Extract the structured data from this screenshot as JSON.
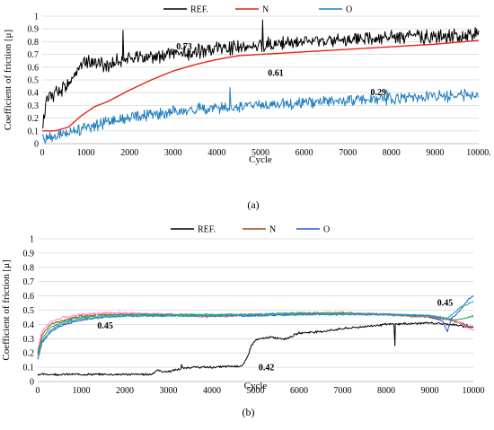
{
  "chart_data": [
    {
      "id": "a",
      "type": "line",
      "panel_label": "(a)",
      "panel_letter": "a",
      "xlabel": "Cycle",
      "ylabel": "Coefficient of friction [μ]",
      "xlim": [
        0,
        10000
      ],
      "ylim": [
        0,
        1
      ],
      "x_ticks": [
        "0",
        "1000",
        "2000",
        "3000",
        "4000",
        "5000",
        "6000",
        "7000",
        "8000",
        "9000",
        "10000."
      ],
      "y_ticks": [
        "0",
        "0.1",
        "0.2",
        "0.3",
        "0.4",
        "0.5",
        "0.6",
        "0.7",
        "0.8",
        "0.9",
        "1"
      ],
      "grid": true,
      "legend_position": "top",
      "series": [
        {
          "name": "REF.",
          "color": "#000000",
          "noise": 0.045,
          "seed": 11,
          "x": [
            0,
            100,
            300,
            600,
            800,
            1000,
            1500,
            2000,
            3000,
            4000,
            5000,
            6000,
            7000,
            8000,
            9000,
            10000
          ],
          "y": [
            0.12,
            0.33,
            0.4,
            0.47,
            0.58,
            0.65,
            0.62,
            0.67,
            0.7,
            0.74,
            0.77,
            0.79,
            0.81,
            0.83,
            0.84,
            0.86
          ],
          "spikes": [
            [
              1850,
              0.89
            ],
            [
              5050,
              0.97
            ]
          ]
        },
        {
          "name": "N",
          "color": "#e8211a",
          "noise": 0,
          "seed": 0,
          "x": [
            0,
            300,
            600,
            900,
            1200,
            1500,
            2000,
            2500,
            3000,
            3500,
            4000,
            4500,
            5000,
            6000,
            7000,
            8000,
            9000,
            10000
          ],
          "y": [
            0.1,
            0.1,
            0.13,
            0.22,
            0.29,
            0.33,
            0.42,
            0.5,
            0.57,
            0.62,
            0.66,
            0.69,
            0.7,
            0.72,
            0.74,
            0.76,
            0.78,
            0.81
          ]
        },
        {
          "name": "O",
          "color": "#1f7fc1",
          "noise": 0.035,
          "seed": 23,
          "x": [
            0,
            300,
            700,
            1000,
            1500,
            2000,
            3000,
            4000,
            5000,
            6000,
            7000,
            8000,
            9000,
            10000
          ],
          "y": [
            0.04,
            0.06,
            0.09,
            0.13,
            0.17,
            0.2,
            0.25,
            0.28,
            0.3,
            0.32,
            0.34,
            0.35,
            0.37,
            0.38
          ],
          "spikes": [
            [
              4300,
              0.44
            ],
            [
              7900,
              0.42
            ]
          ]
        }
      ],
      "annotations": [
        {
          "text": "0.73",
          "x": 3250,
          "y": 0.74
        },
        {
          "text": "0.61",
          "x": 5350,
          "y": 0.53
        },
        {
          "text": "0.29",
          "x": 7700,
          "y": 0.38
        }
      ]
    },
    {
      "id": "b",
      "type": "line",
      "panel_label": "(b)",
      "panel_letter": "b",
      "xlabel": "Cycle",
      "ylabel": "Coefficient of friction [μ]",
      "xlim": [
        0,
        10000
      ],
      "ylim": [
        0,
        1
      ],
      "x_ticks": [
        "0",
        "1000",
        "2000",
        "3000",
        "4000",
        "5000",
        "6000",
        "7000",
        "8000",
        "9000",
        "10000"
      ],
      "y_ticks": [
        "0",
        "0.1",
        "0.2",
        "0.3",
        "0.4",
        "0.5",
        "0.6",
        "0.7",
        "0.8",
        "0.9",
        "1"
      ],
      "grid": true,
      "legend_position": "top",
      "series": [
        {
          "name": "REF.",
          "color": "#000000",
          "noise": 0.006,
          "seed": 5,
          "x": [
            0,
            1000,
            2000,
            2600,
            2750,
            2850,
            3000,
            3300,
            3500,
            4000,
            4700,
            4800,
            4900,
            5000,
            5300,
            5700,
            6000,
            6500,
            7000,
            8000,
            9000,
            9500,
            9700,
            10000
          ],
          "y": [
            0.05,
            0.05,
            0.05,
            0.05,
            0.08,
            0.07,
            0.07,
            0.09,
            0.1,
            0.1,
            0.11,
            0.16,
            0.25,
            0.29,
            0.31,
            0.3,
            0.34,
            0.35,
            0.37,
            0.4,
            0.41,
            0.4,
            0.39,
            0.38
          ],
          "spikes": [
            [
              3300,
              0.12
            ],
            [
              8200,
              0.25
            ]
          ]
        },
        {
          "name": "N",
          "color": "#9b4a1e",
          "noise": 0.006,
          "seed": 9,
          "x": [
            0,
            100,
            300,
            600,
            1000,
            1500,
            2000,
            3000,
            4000,
            5000,
            6000,
            7000,
            8000,
            9000,
            9500,
            9800,
            10000
          ],
          "y": [
            0.2,
            0.33,
            0.4,
            0.43,
            0.46,
            0.47,
            0.47,
            0.47,
            0.46,
            0.47,
            0.47,
            0.48,
            0.47,
            0.45,
            0.43,
            0.4,
            0.38
          ]
        },
        {
          "name": "",
          "color": "#ff7fc8",
          "noise": 0.006,
          "seed": 17,
          "x": [
            0,
            100,
            300,
            600,
            1000,
            1500,
            2000,
            3000,
            4000,
            5000,
            6000,
            7000,
            8000,
            9000,
            9500,
            9800,
            10000
          ],
          "y": [
            0.22,
            0.35,
            0.42,
            0.45,
            0.47,
            0.48,
            0.48,
            0.47,
            0.45,
            0.47,
            0.48,
            0.48,
            0.47,
            0.46,
            0.44,
            0.39,
            0.36
          ]
        },
        {
          "name": "",
          "color": "#2fa84f",
          "noise": 0.005,
          "seed": 29,
          "x": [
            0,
            100,
            300,
            600,
            1000,
            1500,
            2000,
            3000,
            4000,
            5000,
            6000,
            7000,
            8000,
            9000,
            9600,
            9900,
            10000
          ],
          "y": [
            0.18,
            0.3,
            0.38,
            0.42,
            0.45,
            0.46,
            0.47,
            0.47,
            0.47,
            0.47,
            0.48,
            0.48,
            0.47,
            0.46,
            0.43,
            0.45,
            0.46
          ]
        },
        {
          "name": "O",
          "color": "#2d56c8",
          "noise": 0.005,
          "seed": 41,
          "x": [
            0,
            100,
            300,
            600,
            1000,
            1500,
            2000,
            3000,
            4000,
            5000,
            6000,
            7000,
            8000,
            9000,
            9300,
            9400,
            9500,
            9700,
            9900,
            10000
          ],
          "y": [
            0.15,
            0.27,
            0.35,
            0.4,
            0.43,
            0.45,
            0.46,
            0.46,
            0.46,
            0.46,
            0.47,
            0.47,
            0.47,
            0.46,
            0.42,
            0.35,
            0.44,
            0.5,
            0.58,
            0.6
          ]
        },
        {
          "name": "",
          "color": "#1aa6b8",
          "noise": 0.005,
          "seed": 53,
          "x": [
            0,
            100,
            300,
            600,
            1000,
            2000,
            3000,
            4000,
            5000,
            6000,
            7000,
            8000,
            9000,
            9400,
            9700,
            10000
          ],
          "y": [
            0.16,
            0.28,
            0.36,
            0.41,
            0.44,
            0.46,
            0.46,
            0.46,
            0.47,
            0.47,
            0.47,
            0.47,
            0.46,
            0.44,
            0.52,
            0.56
          ]
        }
      ],
      "legend_series": [
        0,
        1,
        4
      ],
      "annotations": [
        {
          "text": "0.45",
          "x": 1550,
          "y": 0.37
        },
        {
          "text": "0.42",
          "x": 5250,
          "y": 0.08
        },
        {
          "text": "0.45",
          "x": 9350,
          "y": 0.53
        }
      ]
    }
  ]
}
